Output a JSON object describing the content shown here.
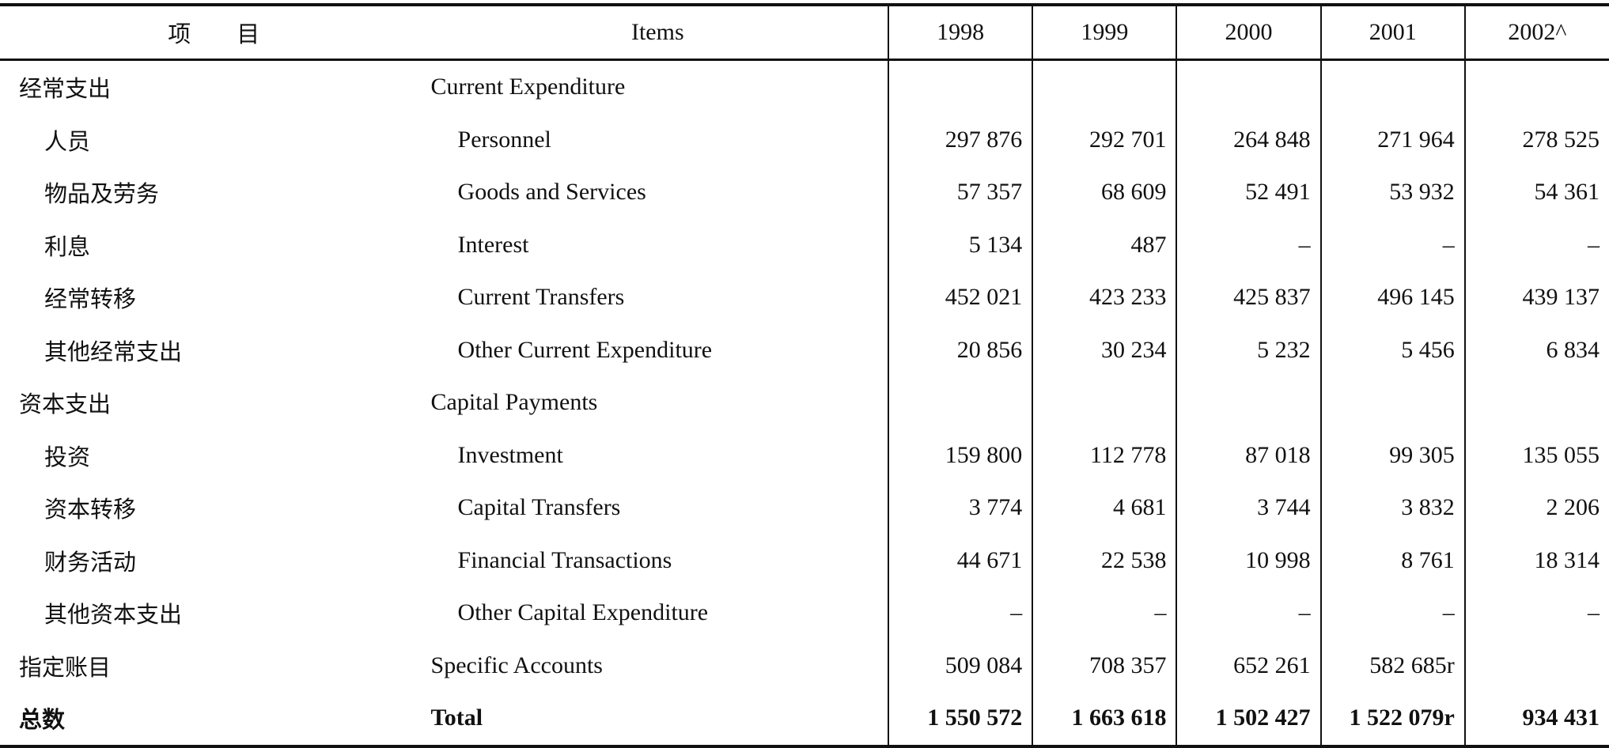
{
  "header": {
    "col_zh": "项　　目",
    "col_en": "Items",
    "years": [
      "1998",
      "1999",
      "2000",
      "2001",
      "2002^"
    ]
  },
  "rows": [
    {
      "zh": "经常支出",
      "en": "Current Expenditure",
      "level": 0,
      "values": [
        "",
        "",
        "",
        "",
        ""
      ]
    },
    {
      "zh": "人员",
      "en": "Personnel",
      "level": 1,
      "values": [
        "297 876",
        "292 701",
        "264 848",
        "271 964",
        "278 525"
      ]
    },
    {
      "zh": "物品及劳务",
      "en": "Goods and Services",
      "level": 1,
      "values": [
        "57 357",
        "68 609",
        "52 491",
        "53 932",
        "54 361"
      ]
    },
    {
      "zh": "利息",
      "en": "Interest",
      "level": 1,
      "values": [
        "5 134",
        "487",
        "–",
        "–",
        "–"
      ]
    },
    {
      "zh": "经常转移",
      "en": "Current Transfers",
      "level": 1,
      "values": [
        "452 021",
        "423 233",
        "425 837",
        "496 145",
        "439 137"
      ]
    },
    {
      "zh": "其他经常支出",
      "en": "Other Current Expenditure",
      "level": 1,
      "values": [
        "20 856",
        "30 234",
        "5 232",
        "5 456",
        "6 834"
      ]
    },
    {
      "zh": "资本支出",
      "en": "Capital Payments",
      "level": 0,
      "values": [
        "",
        "",
        "",
        "",
        ""
      ]
    },
    {
      "zh": "投资",
      "en": "Investment",
      "level": 1,
      "values": [
        "159 800",
        "112 778",
        "87 018",
        "99 305",
        "135 055"
      ]
    },
    {
      "zh": "资本转移",
      "en": "Capital Transfers",
      "level": 1,
      "values": [
        "3 774",
        "4 681",
        "3 744",
        "3 832",
        "2 206"
      ]
    },
    {
      "zh": "财务活动",
      "en": "Financial Transactions",
      "level": 1,
      "values": [
        "44 671",
        "22 538",
        "10 998",
        "8 761",
        "18 314"
      ]
    },
    {
      "zh": "其他资本支出",
      "en": "Other Capital Expenditure",
      "level": 1,
      "values": [
        "–",
        "–",
        "–",
        "–",
        "–"
      ]
    },
    {
      "zh": "指定账目",
      "en": "Specific Accounts",
      "level": 0,
      "values": [
        "509 084",
        "708 357",
        "652 261",
        "582 685r",
        ""
      ]
    },
    {
      "zh": "总数",
      "en": "Total",
      "level": 0,
      "total": true,
      "values": [
        "1 550 572",
        "1 663 618",
        "1 502 427",
        "1 522 079r",
        "934 431"
      ]
    }
  ]
}
